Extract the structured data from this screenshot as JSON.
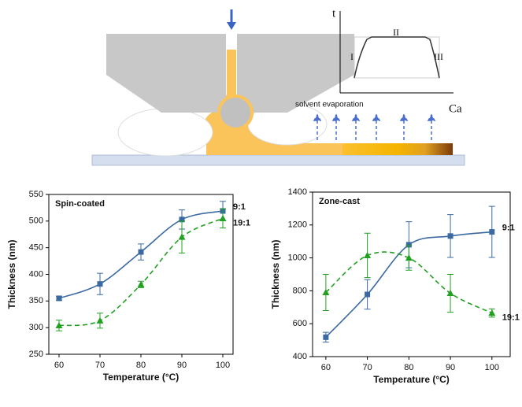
{
  "diagram": {
    "inset_y_label": "t",
    "inset_x_label": "Ca",
    "stage_1": "I",
    "stage_2": "II",
    "stage_3": "III",
    "annotation": "solvent evaporation"
  },
  "chart_data": [
    {
      "type": "line",
      "title": "Spin-coated",
      "x_label": "Temperature (°C)",
      "y_label": "Thickness (nm)",
      "x": [
        60,
        70,
        80,
        90,
        100
      ],
      "xlim": [
        57.5,
        102.5
      ],
      "xticks": [
        60,
        70,
        80,
        90,
        100
      ],
      "ylim": [
        250,
        550
      ],
      "yticks": [
        250,
        300,
        350,
        400,
        450,
        500,
        550
      ],
      "series": [
        {
          "name": "9:1",
          "color": "#3b6aa3",
          "marker": "square",
          "values": [
            355,
            382,
            442,
            503,
            519
          ],
          "errors": [
            4,
            20,
            15,
            18,
            18
          ]
        },
        {
          "name": "19:1",
          "color": "#22a022",
          "marker": "triangle",
          "values": [
            304,
            313,
            381,
            470,
            505
          ],
          "errors": [
            10,
            14,
            6,
            30,
            18
          ]
        }
      ]
    },
    {
      "type": "line",
      "title": "Zone-cast",
      "x_label": "Temperature (°C)",
      "y_label": "Thickness (nm)",
      "x": [
        60,
        70,
        80,
        90,
        100
      ],
      "xlim": [
        56.8,
        104.4
      ],
      "xticks": [
        60,
        70,
        80,
        90,
        100
      ],
      "ylim": [
        400,
        1400
      ],
      "yticks": [
        400,
        600,
        800,
        1000,
        1200,
        1400
      ],
      "series": [
        {
          "name": "9:1",
          "color": "#3b6aa3",
          "marker": "square",
          "values": [
            518,
            778,
            1080,
            1133,
            1158
          ],
          "errors": [
            30,
            90,
            140,
            130,
            155
          ]
        },
        {
          "name": "19:1",
          "color": "#22a022",
          "marker": "triangle",
          "values": [
            790,
            1015,
            1000,
            785,
            665
          ],
          "errors": [
            110,
            135,
            75,
            115,
            25
          ]
        }
      ]
    }
  ]
}
